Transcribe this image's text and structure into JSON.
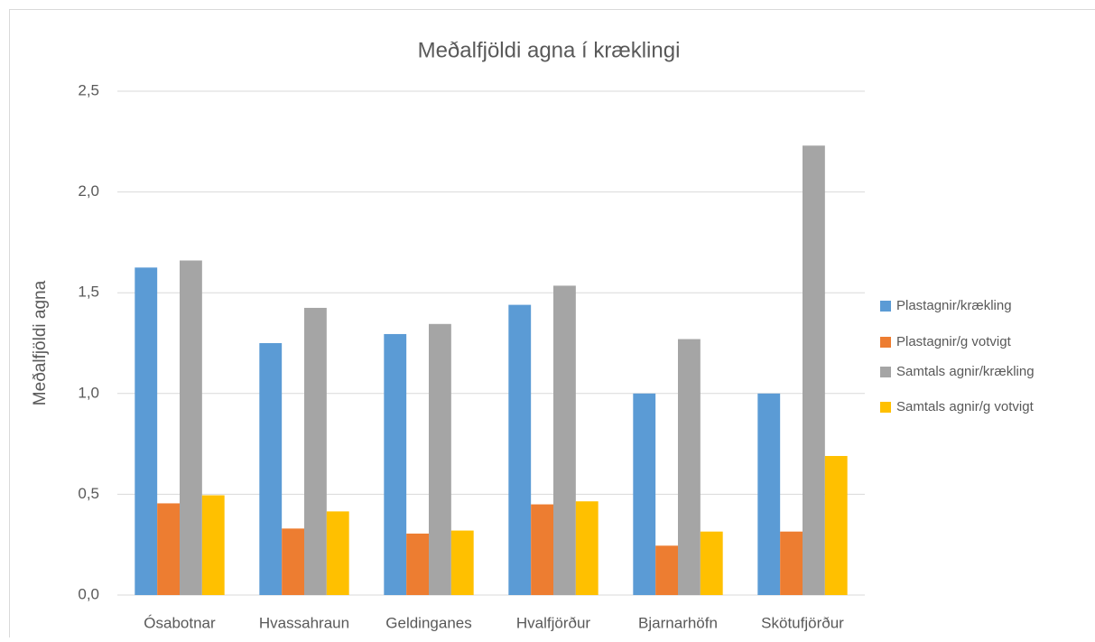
{
  "chart_data": {
    "type": "bar",
    "title": "Meðalfjöldi agna í kræklingi",
    "y_label": "Meðalfjöldi agna",
    "categories": [
      "Ósabotnar",
      "Hvassahraun",
      "Geldinganes",
      "Hvalfjörður",
      "Bjarnarhöfn",
      "Skötufjörður"
    ],
    "series": [
      {
        "name": "Plastagnir/krækling",
        "color": "#5b9bd5",
        "values": [
          1.625,
          1.25,
          1.295,
          1.44,
          1.0,
          1.0
        ]
      },
      {
        "name": "Plastagnir/g votvigt",
        "color": "#ed7d31",
        "values": [
          0.455,
          0.33,
          0.305,
          0.45,
          0.245,
          0.315
        ]
      },
      {
        "name": "Samtals agnir/krækling",
        "color": "#a5a5a5",
        "values": [
          1.66,
          1.425,
          1.345,
          1.535,
          1.27,
          2.23
        ]
      },
      {
        "name": "Samtals agnir/g votvigt",
        "color": "#ffc000",
        "values": [
          0.495,
          0.415,
          0.32,
          0.465,
          0.315,
          0.69
        ]
      }
    ],
    "ylim": [
      0,
      2.5
    ],
    "yticks": [
      {
        "value": 0,
        "label": "0,0"
      },
      {
        "value": 0.5,
        "label": "0,5"
      },
      {
        "value": 1,
        "label": "1,0"
      },
      {
        "value": 1.5,
        "label": "1,5"
      },
      {
        "value": 2,
        "label": "2,0"
      },
      {
        "value": 2.5,
        "label": "2,5"
      }
    ],
    "grid": true,
    "legend": "right"
  }
}
